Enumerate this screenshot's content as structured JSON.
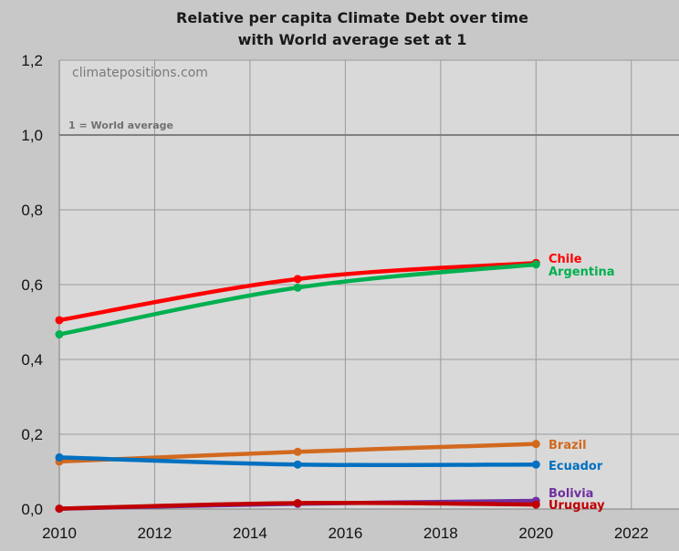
{
  "chart_data": {
    "type": "line",
    "title_line1": "Relative per capita Climate Debt over time",
    "title_line2": "with World average set at 1",
    "watermark": "climatepositions.com",
    "reference_line": {
      "y": 1.0,
      "label": "1 = World average",
      "color": "#808080"
    },
    "xlim": [
      2010,
      2023
    ],
    "ylim": [
      0,
      1.2
    ],
    "x_ticks": [
      "2010",
      "2012",
      "2014",
      "2016",
      "2018",
      "2020",
      "2022"
    ],
    "y_ticks": [
      "0,0",
      "0,2",
      "0,4",
      "0,6",
      "0,8",
      "1,0",
      "1,2"
    ],
    "grid": true,
    "x": [
      2010,
      2015,
      2020
    ],
    "series": [
      {
        "name": "Chile",
        "color": "#ff0000",
        "values": [
          0.505,
          0.615,
          0.658
        ]
      },
      {
        "name": "Argentina",
        "color": "#00b050",
        "values": [
          0.467,
          0.592,
          0.654
        ]
      },
      {
        "name": "Brazil",
        "color": "#d2691e",
        "values": [
          0.127,
          0.153,
          0.174
        ]
      },
      {
        "name": "Ecuador",
        "color": "#0070c0",
        "values": [
          0.138,
          0.119,
          0.119
        ]
      },
      {
        "name": "Bolivia",
        "color": "#7030a0",
        "values": [
          0.001,
          0.014,
          0.022
        ]
      },
      {
        "name": "Uruguay",
        "color": "#c00000",
        "values": [
          0.001,
          0.016,
          0.012
        ]
      }
    ]
  }
}
